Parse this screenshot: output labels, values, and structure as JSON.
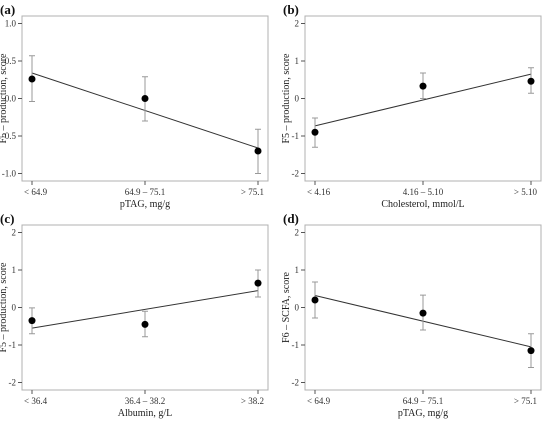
{
  "chart_data": [
    {
      "type": "scatter",
      "panel_label": "(a)",
      "ylabel": "F5 – production, score",
      "xlabel": "pTAG, mg/g",
      "categories": [
        "< 64.9",
        "64.9 – 75.1",
        "> 75.1"
      ],
      "y_ticks": [
        "-1.0",
        "-0.5",
        "0.0",
        "0.5",
        "1.0"
      ],
      "ylim": [
        -1.1,
        1.1
      ],
      "values": [
        0.26,
        0.0,
        -0.7
      ],
      "err_low": [
        -0.04,
        -0.3,
        -1.0
      ],
      "err_high": [
        0.57,
        0.29,
        -0.41
      ],
      "trend": [
        0.34,
        -0.66
      ]
    },
    {
      "type": "scatter",
      "panel_label": "(b)",
      "ylabel": "F5 – production, score",
      "xlabel": "Cholesterol, mmol/L",
      "categories": [
        "< 4.16",
        "4.16 – 5.10",
        "> 5.10"
      ],
      "y_ticks": [
        "-2",
        "-1",
        "0",
        "1",
        "2"
      ],
      "ylim": [
        -2.2,
        2.2
      ],
      "values": [
        -0.9,
        0.33,
        0.46
      ],
      "err_low": [
        -1.3,
        0.0,
        0.14
      ],
      "err_high": [
        -0.52,
        0.68,
        0.82
      ],
      "trend": [
        -0.73,
        0.65
      ]
    },
    {
      "type": "scatter",
      "panel_label": "(c)",
      "ylabel": "F5 – production, score",
      "xlabel": "Albumin, g/L",
      "categories": [
        "< 36.4",
        "36.4 – 38.2",
        "> 38.2"
      ],
      "y_ticks": [
        "-2",
        "-1",
        "0",
        "1",
        "2"
      ],
      "ylim": [
        -2.2,
        2.2
      ],
      "values": [
        -0.35,
        -0.45,
        0.65
      ],
      "err_low": [
        -0.7,
        -0.78,
        0.28
      ],
      "err_high": [
        -0.01,
        -0.1,
        1.0
      ],
      "trend": [
        -0.55,
        0.45
      ]
    },
    {
      "type": "scatter",
      "panel_label": "(d)",
      "ylabel": "F6 – SCFA, score",
      "xlabel": "pTAG, mg/g",
      "categories": [
        "< 64.9",
        "64.9 – 75.1",
        "> 75.1"
      ],
      "y_ticks": [
        "-2",
        "-1",
        "0",
        "1",
        "2"
      ],
      "ylim": [
        -2.2,
        2.2
      ],
      "values": [
        0.2,
        -0.15,
        -1.15
      ],
      "err_low": [
        -0.28,
        -0.6,
        -1.6
      ],
      "err_high": [
        0.68,
        0.33,
        -0.7
      ],
      "trend": [
        0.32,
        -1.05
      ]
    }
  ]
}
